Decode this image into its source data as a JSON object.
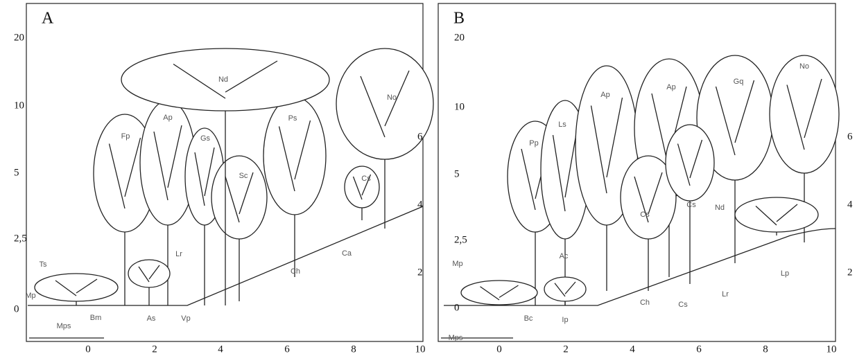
{
  "panels": [
    {
      "label": "A",
      "left_ticks": [
        20,
        10,
        5,
        "2,5",
        0
      ],
      "right_ticks": [
        6,
        4,
        2
      ],
      "bottom_ticks": [
        0,
        2,
        4,
        6,
        8,
        10
      ],
      "labels": [
        "Ts",
        "Mp",
        "Mps",
        "Bm",
        "As",
        "Vp",
        "Lr",
        "Fp",
        "Ap",
        "Gs",
        "Sc",
        "Nd",
        "Ps",
        "No",
        "Cs",
        "Ca",
        "Ch"
      ]
    },
    {
      "label": "B",
      "left_ticks": [
        20,
        10,
        5,
        "2,5",
        0
      ],
      "right_ticks": [
        6,
        4,
        2
      ],
      "bottom_ticks": [
        0,
        2,
        4,
        6,
        8,
        10
      ],
      "labels": [
        "Mp",
        "Mps",
        "Bc",
        "Ip",
        "Ac",
        "Pp",
        "Ls",
        "Ap",
        "Ap",
        "Gq",
        "No",
        "Cs",
        "Cs",
        "Nd",
        "Ch",
        "Cs",
        "Lr",
        "Lp"
      ]
    }
  ]
}
